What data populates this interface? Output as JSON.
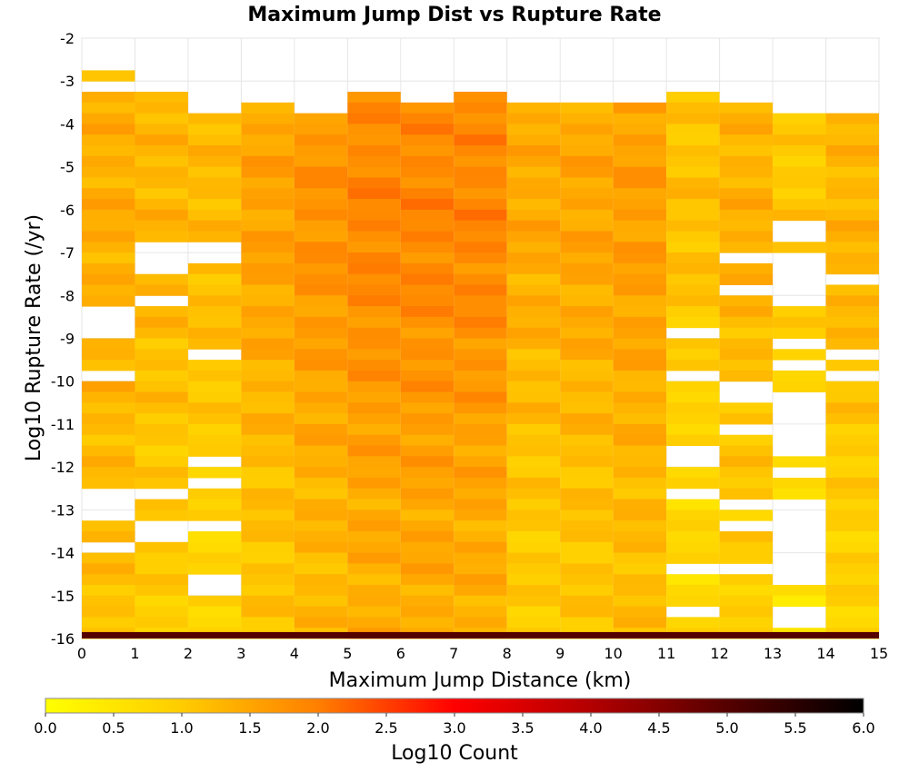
{
  "chart_data": {
    "type": "heatmap",
    "title": "Maximum Jump Dist vs Rupture Rate",
    "xlabel": "Maximum Jump Distance (km)",
    "ylabel": "Log10 Rupture Rate (/yr)",
    "xlim": [
      0,
      15
    ],
    "ylim": [
      -16,
      -2
    ],
    "x_ticks": [
      "0",
      "1",
      "2",
      "3",
      "4",
      "5",
      "6",
      "7",
      "8",
      "9",
      "10",
      "11",
      "12",
      "13",
      "14",
      "15"
    ],
    "y_ticks": [
      "-2",
      "-3",
      "-4",
      "-5",
      "-6",
      "-7",
      "-8",
      "-9",
      "-10",
      "-11",
      "-12",
      "-13",
      "-14",
      "-15",
      "-16"
    ],
    "x_bin_size": 1,
    "y_bin_size": 0.25,
    "colorbar": {
      "label": "Log10 Count",
      "min": 0,
      "max": 6,
      "ticks": [
        "0.0",
        "0.5",
        "1.0",
        "1.5",
        "2.0",
        "2.5",
        "3.0",
        "3.5",
        "4.0",
        "4.5",
        "5.0",
        "5.5",
        "6.0"
      ],
      "stops": [
        {
          "value": 0.0,
          "color": "#ffff00"
        },
        {
          "value": 1.0,
          "color": "#ffcc00"
        },
        {
          "value": 2.0,
          "color": "#ff7f00"
        },
        {
          "value": 3.0,
          "color": "#ff0000"
        },
        {
          "value": 4.0,
          "color": "#b30000"
        },
        {
          "value": 5.0,
          "color": "#550000"
        },
        {
          "value": 6.0,
          "color": "#000000"
        }
      ]
    },
    "grid": true,
    "columns": [
      {
        "x": 0.5,
        "top": -2.75,
        "bottom": -15.75,
        "gaps": [
          [
            -3.0,
            -3.25
          ],
          [
            -8.25,
            -9.0
          ],
          [
            -9.75,
            -10.0
          ],
          [
            -12.5,
            -13.25
          ],
          [
            -13.75,
            -14.0
          ]
        ],
        "base": 1.15,
        "amp": 0.25
      },
      {
        "x": 1.5,
        "top": -3.25,
        "bottom": -15.75,
        "gaps": [
          [
            -6.75,
            -7.5
          ],
          [
            -8.0,
            -8.25
          ],
          [
            -12.5,
            -12.75
          ],
          [
            -13.25,
            -13.75
          ]
        ],
        "base": 0.95,
        "amp": 0.35
      },
      {
        "x": 2.5,
        "top": -3.75,
        "bottom": -15.75,
        "gaps": [
          [
            -6.75,
            -7.25
          ],
          [
            -9.25,
            -9.5
          ],
          [
            -11.75,
            -12.0
          ],
          [
            -12.25,
            -12.5
          ],
          [
            -13.25,
            -13.5
          ],
          [
            -14.5,
            -15.0
          ]
        ],
        "base": 0.8,
        "amp": 0.45
      },
      {
        "x": 3.5,
        "top": -3.5,
        "bottom": -15.75,
        "gaps": [],
        "base": 1.05,
        "amp": 0.5
      },
      {
        "x": 4.5,
        "top": -3.75,
        "bottom": -15.75,
        "gaps": [],
        "base": 1.2,
        "amp": 0.55
      },
      {
        "x": 5.5,
        "top": -3.25,
        "bottom": -15.75,
        "gaps": [],
        "base": 1.35,
        "amp": 0.55
      },
      {
        "x": 6.5,
        "top": -3.5,
        "bottom": -15.75,
        "gaps": [],
        "base": 1.4,
        "amp": 0.5
      },
      {
        "x": 7.5,
        "top": -3.25,
        "bottom": -15.75,
        "gaps": [],
        "base": 1.35,
        "amp": 0.55
      },
      {
        "x": 8.5,
        "top": -3.5,
        "bottom": -15.75,
        "gaps": [],
        "base": 0.95,
        "amp": 0.5
      },
      {
        "x": 9.5,
        "top": -3.5,
        "bottom": -15.75,
        "gaps": [],
        "base": 1.05,
        "amp": 0.45
      },
      {
        "x": 10.5,
        "top": -3.5,
        "bottom": -15.75,
        "gaps": [],
        "base": 1.15,
        "amp": 0.45
      },
      {
        "x": 11.5,
        "top": -3.25,
        "bottom": -15.75,
        "gaps": [
          [
            -8.75,
            -9.0
          ],
          [
            -9.75,
            -10.0
          ],
          [
            -11.5,
            -12.0
          ],
          [
            -12.5,
            -12.75
          ],
          [
            -14.25,
            -14.5
          ],
          [
            -15.25,
            -15.5
          ]
        ],
        "base": 0.7,
        "amp": 0.45
      },
      {
        "x": 12.5,
        "top": -3.5,
        "bottom": -15.75,
        "gaps": [
          [
            -7.0,
            -7.25
          ],
          [
            -7.75,
            -8.0
          ],
          [
            -10.0,
            -10.5
          ],
          [
            -11.0,
            -11.25
          ],
          [
            -12.75,
            -13.0
          ],
          [
            -13.25,
            -13.5
          ],
          [
            -14.25,
            -14.5
          ]
        ],
        "base": 0.95,
        "amp": 0.4
      },
      {
        "x": 13.5,
        "top": -3.75,
        "bottom": -15.75,
        "gaps": [
          [
            -6.25,
            -6.75
          ],
          [
            -7.0,
            -8.25
          ],
          [
            -9.0,
            -9.25
          ],
          [
            -9.5,
            -9.75
          ],
          [
            -10.25,
            -11.75
          ],
          [
            -12.0,
            -12.25
          ],
          [
            -12.75,
            -14.75
          ],
          [
            -15.25,
            -15.75
          ]
        ],
        "base": 0.6,
        "amp": 0.45
      },
      {
        "x": 14.5,
        "top": -3.75,
        "bottom": -15.75,
        "gaps": [
          [
            -7.5,
            -7.75
          ],
          [
            -9.25,
            -9.5
          ],
          [
            -9.75,
            -10.0
          ]
        ],
        "base": 0.85,
        "amp": 0.45
      }
    ],
    "bottom_row": {
      "y_range": [
        -16.0,
        -15.85
      ],
      "value": 5.0
    }
  }
}
